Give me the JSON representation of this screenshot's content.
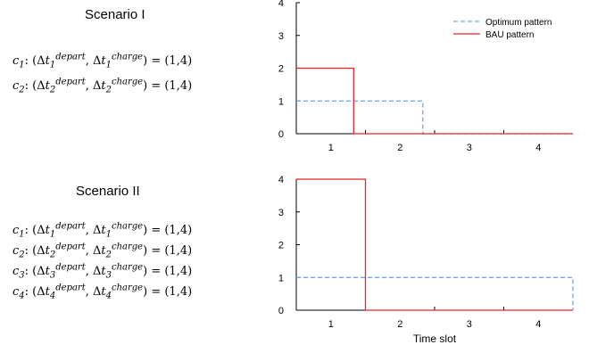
{
  "scenarios": [
    {
      "title": "Scenario I",
      "constraints": [
        {
          "var": "c",
          "idx": "1",
          "depart": "depart",
          "charge": "charge",
          "value": "= (1,4)"
        },
        {
          "var": "c",
          "idx": "2",
          "depart": "depart",
          "charge": "charge",
          "value": "= (1,4)"
        }
      ]
    },
    {
      "title": "Scenario II",
      "constraints": [
        {
          "var": "c",
          "idx": "1",
          "depart": "depart",
          "charge": "charge",
          "value": "= (1,4)"
        },
        {
          "var": "c",
          "idx": "2",
          "depart": "depart",
          "charge": "charge",
          "value": "= (1,4)"
        },
        {
          "var": "c",
          "idx": "3",
          "depart": "depart",
          "charge": "charge",
          "value": "= (1,4)"
        },
        {
          "var": "c",
          "idx": "4",
          "depart": "depart",
          "charge": "charge",
          "value": "= (1,4)"
        }
      ]
    }
  ],
  "chart_data": [
    {
      "type": "line",
      "title": "",
      "xlabel": "",
      "ylabel": "",
      "xlim": [
        0.5,
        4.5
      ],
      "ylim": [
        0,
        4
      ],
      "x_ticks": [
        "1",
        "2",
        "3",
        "4"
      ],
      "y_ticks": [
        "0",
        "1",
        "2",
        "3",
        "4"
      ],
      "legend": {
        "placement": "top-right",
        "entries": [
          "Optimum pattern",
          "BAU pattern"
        ]
      },
      "series": [
        {
          "name": "Optimum pattern",
          "color": "#7aa7d6",
          "style": "dashed",
          "x": [
            0.5,
            2.33,
            2.33,
            4.5
          ],
          "y": [
            1,
            1,
            0,
            0
          ]
        },
        {
          "name": "BAU pattern",
          "color": "#e8242b",
          "style": "solid",
          "x": [
            0.5,
            1.33,
            1.33,
            4.5
          ],
          "y": [
            2,
            2,
            0,
            0
          ]
        }
      ]
    },
    {
      "type": "line",
      "title": "",
      "xlabel": "Time slot",
      "ylabel": "",
      "xlim": [
        0.5,
        4.5
      ],
      "ylim": [
        0,
        4
      ],
      "x_ticks": [
        "1",
        "2",
        "3",
        "4"
      ],
      "y_ticks": [
        "0",
        "1",
        "2",
        "3",
        "4"
      ],
      "series": [
        {
          "name": "Optimum pattern",
          "color": "#7aa7d6",
          "style": "dashed",
          "x": [
            0.5,
            4.5,
            4.5
          ],
          "y": [
            1,
            1,
            0
          ]
        },
        {
          "name": "BAU pattern",
          "color": "#e8242b",
          "style": "solid",
          "x": [
            0.5,
            1.5,
            1.5,
            4.5
          ],
          "y": [
            4,
            4,
            0,
            0
          ]
        }
      ]
    }
  ]
}
